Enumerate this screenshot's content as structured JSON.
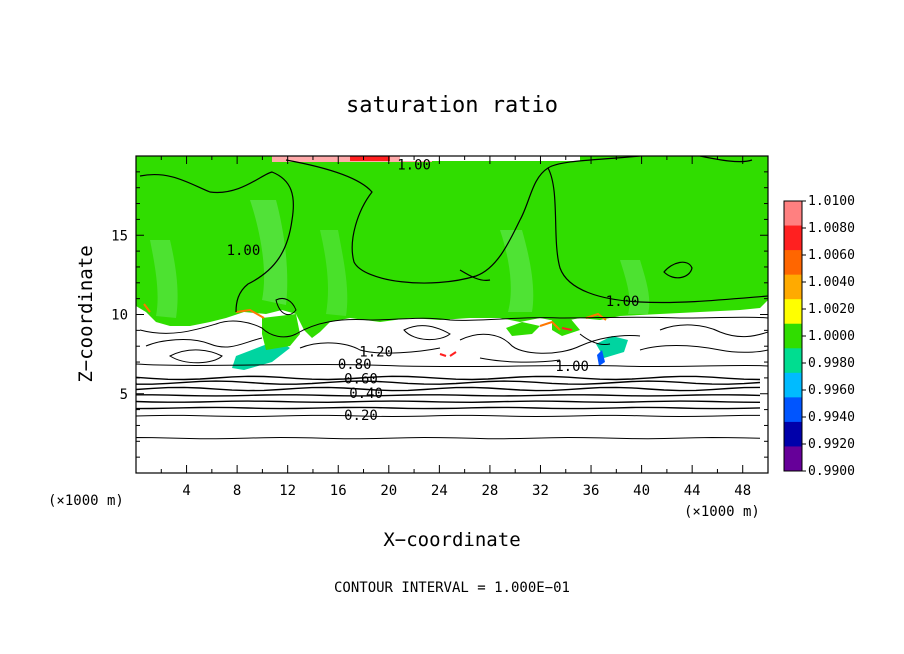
{
  "chart_data": {
    "type": "heatmap",
    "title": "saturation ratio",
    "xlabel": "X−coordinate",
    "ylabel": "Z−coordinate",
    "x_unit": "(×1000 m)",
    "z_unit": "(×1000 m)",
    "xlim": [
      0,
      50
    ],
    "ylim": [
      0,
      20
    ],
    "x_ticks": [
      4,
      8,
      12,
      16,
      20,
      24,
      28,
      32,
      36,
      40,
      44,
      48
    ],
    "y_ticks": [
      5,
      10,
      15
    ],
    "colorbar": {
      "levels": [
        "1.0100",
        "1.0080",
        "1.0060",
        "1.0040",
        "1.0020",
        "1.0000",
        "0.9980",
        "0.9960",
        "0.9940",
        "0.9920",
        "0.9900"
      ],
      "colors": [
        "#ff8080",
        "#ff2020",
        "#ff6600",
        "#ffaa00",
        "#ffff00",
        "#30dd00",
        "#00dd90",
        "#00bbff",
        "#0055ff",
        "#0000aa",
        "#660099"
      ]
    },
    "contour_labels": [
      {
        "text": "1.00",
        "x": 22.0,
        "z": 19.4
      },
      {
        "text": "1.00",
        "x": 8.5,
        "z": 14.0
      },
      {
        "text": "1.00",
        "x": 38.5,
        "z": 10.8
      },
      {
        "text": "1.20",
        "x": 19.0,
        "z": 7.6
      },
      {
        "text": "0.80",
        "x": 17.3,
        "z": 6.8
      },
      {
        "text": "0.60",
        "x": 17.8,
        "z": 5.9
      },
      {
        "text": "0.40",
        "x": 18.2,
        "z": 5.0
      },
      {
        "text": "0.20",
        "x": 17.8,
        "z": 3.6
      },
      {
        "text": "1.00",
        "x": 34.5,
        "z": 6.7
      }
    ],
    "stratified_contour_levels_z": [
      6.0,
      5.7,
      5.3,
      4.9,
      4.5,
      4.1,
      3.6,
      2.2
    ],
    "footer": "CONTOUR INTERVAL = 1.000E−01"
  },
  "colors": {
    "field_main": "#30dd00",
    "field_light": "#55e23a",
    "field_cyan": "#00d4a0",
    "background": "#ffffff"
  }
}
